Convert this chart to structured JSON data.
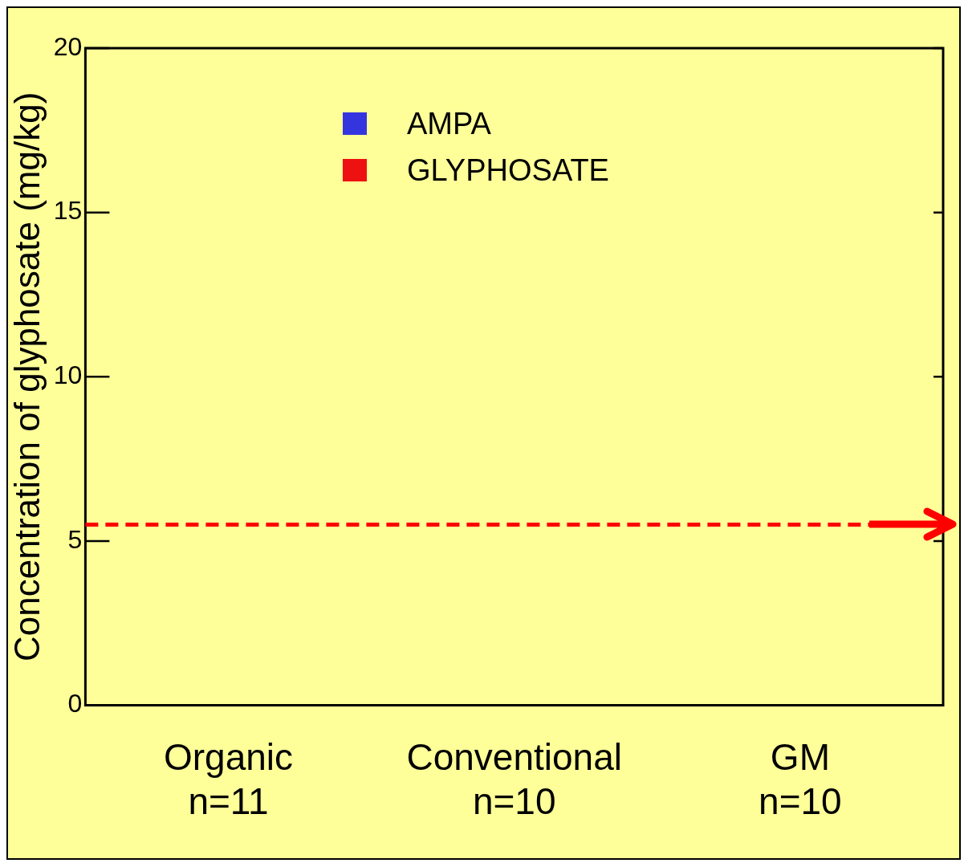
{
  "chart_data": {
    "type": "bar",
    "ylabel": "Concentration of glyphosate (mg/kg)",
    "categories": [
      "Organic\nn=11",
      "Conventional\nn=10",
      "GM\nn=10"
    ],
    "series": [
      {
        "name": "AMPA",
        "color": "#3535e0",
        "values": [
          0,
          0,
          0
        ]
      },
      {
        "name": "GLYPHOSATE",
        "color": "#ee1111",
        "values": [
          0,
          0,
          0
        ]
      }
    ],
    "ylim": [
      0,
      20
    ],
    "yticks": [
      0,
      5,
      10,
      15,
      20
    ],
    "grid": false,
    "legend": "top left",
    "ref_lines": [
      {
        "axis": "y",
        "value": 5.5,
        "color": "#ff0000",
        "line_style": "dashed"
      }
    ]
  }
}
